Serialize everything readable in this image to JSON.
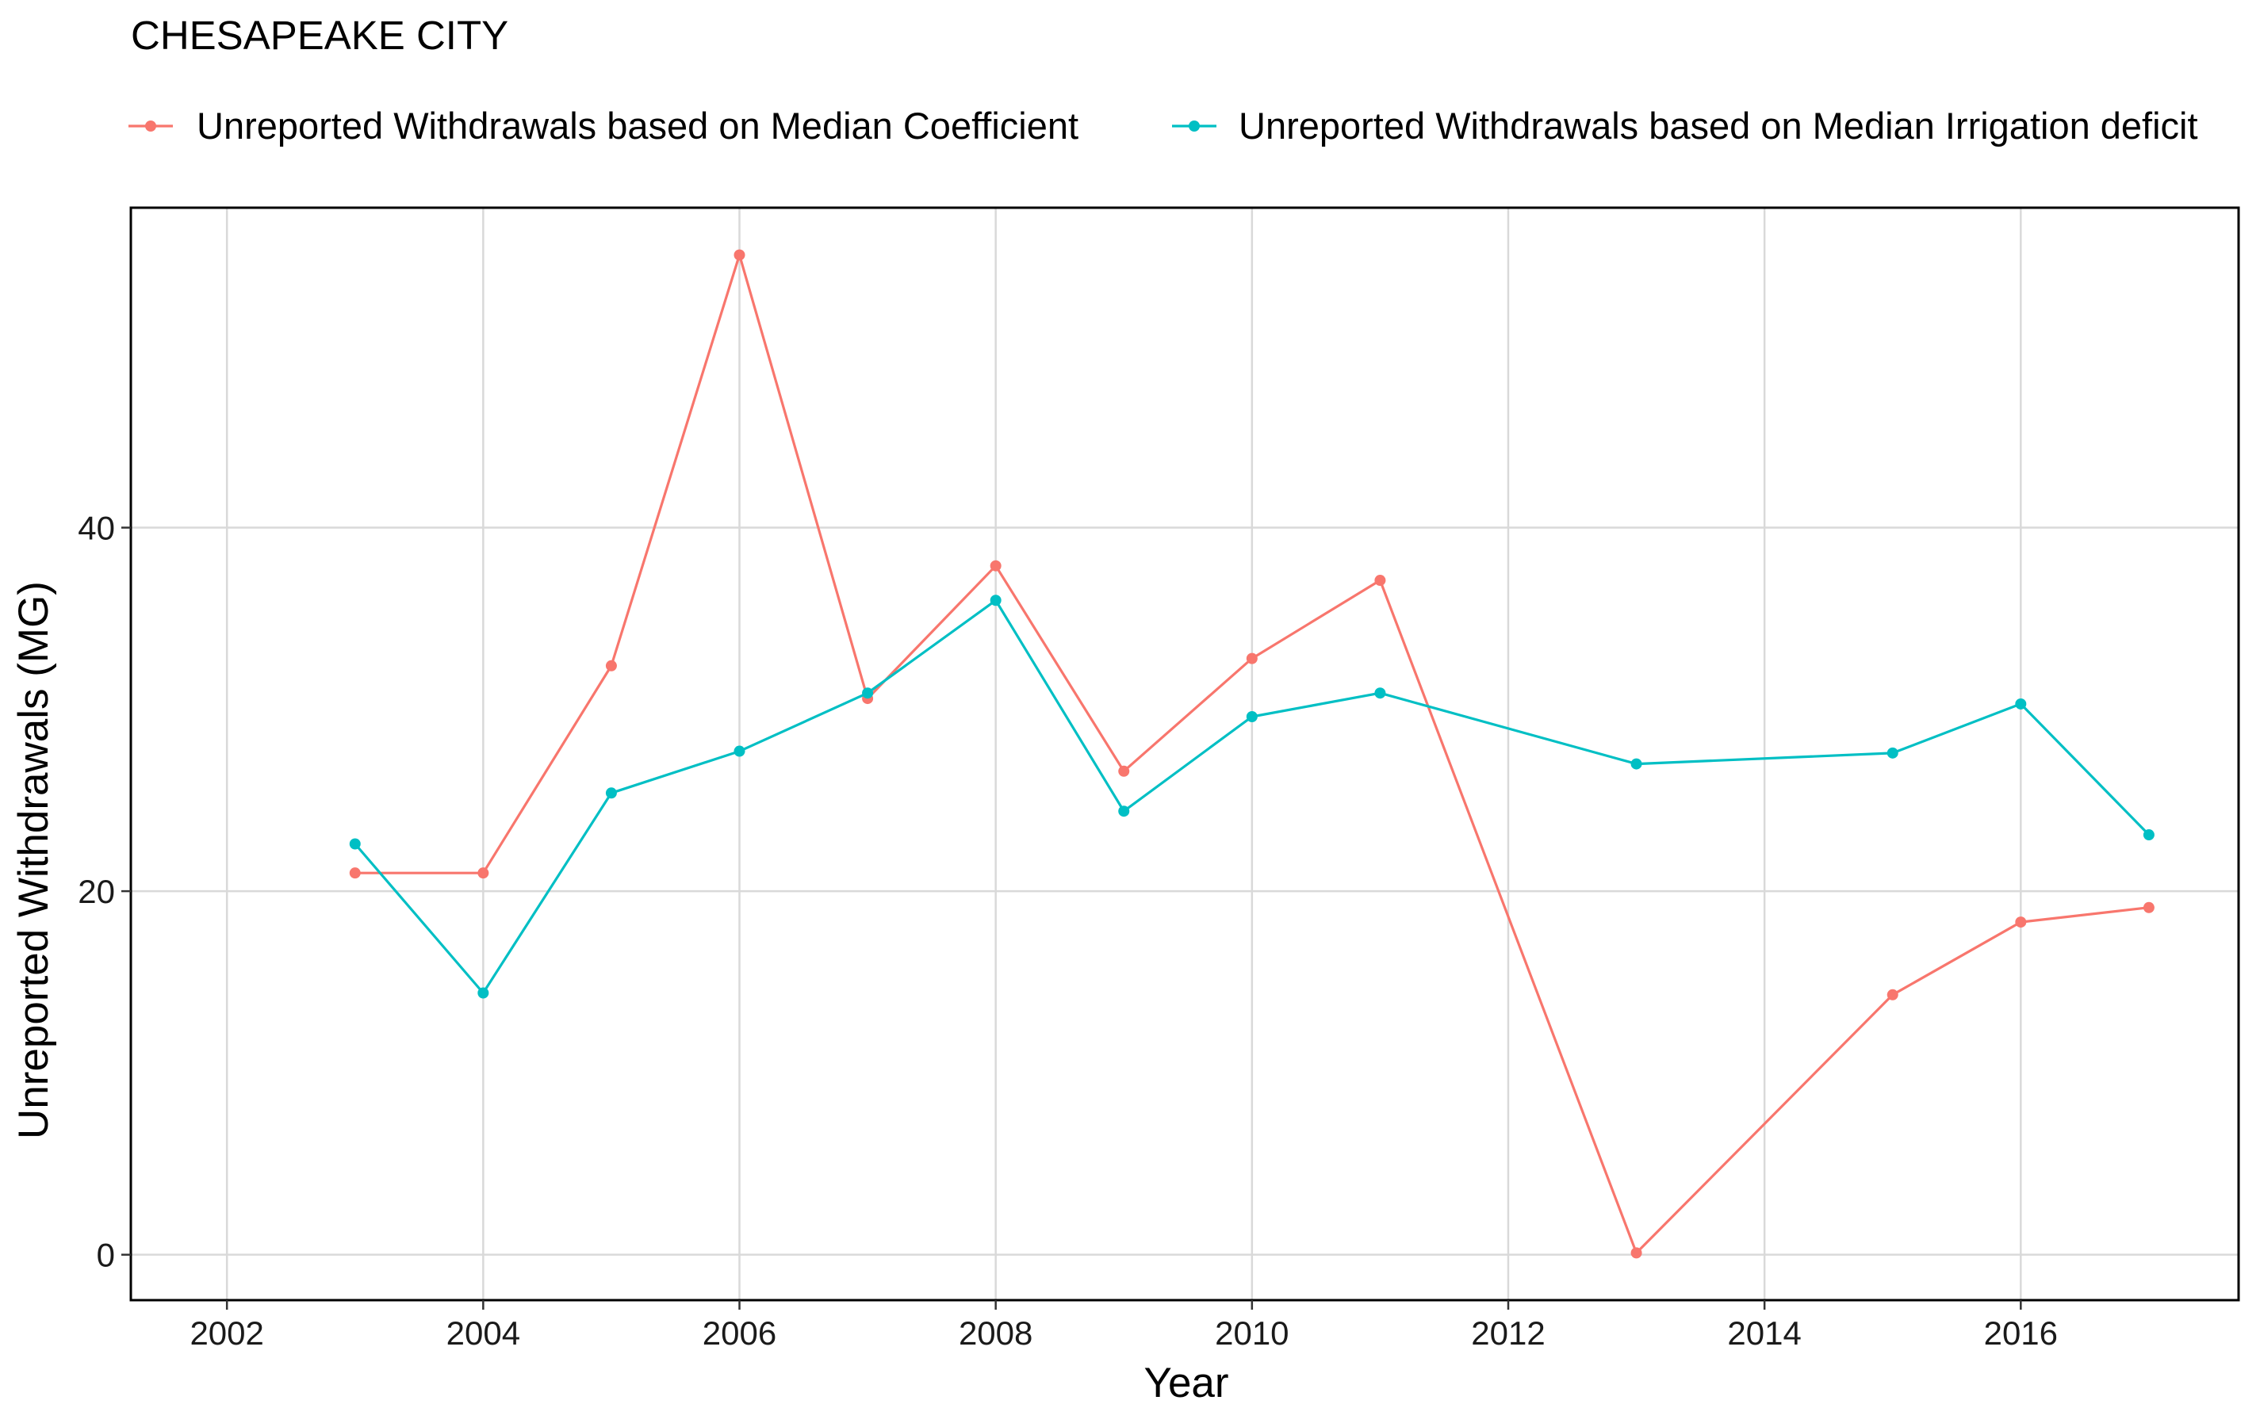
{
  "chart_data": {
    "type": "line",
    "title": "CHESAPEAKE CITY",
    "xlabel": "Year",
    "ylabel": "Unreported Withdrawals (MG)",
    "xlim": [
      2001.25,
      2017.7
    ],
    "ylim": [
      -2.5,
      57.6
    ],
    "x_ticks": [
      2002,
      2004,
      2006,
      2008,
      2010,
      2012,
      2014,
      2016
    ],
    "y_ticks": [
      0,
      20,
      40
    ],
    "grid": true,
    "legend_position": "top",
    "series": [
      {
        "name": "Unreported Withdrawals based on Median Coefficient",
        "color": "#F8766D",
        "x": [
          2003,
          2004,
          2005,
          2006,
          2007,
          2008,
          2009,
          2010,
          2011,
          2013,
          2015,
          2016,
          2017
        ],
        "y": [
          21.0,
          21.0,
          32.4,
          55.0,
          30.6,
          37.9,
          26.6,
          32.8,
          37.1,
          0.1,
          14.3,
          18.3,
          19.1
        ]
      },
      {
        "name": "Unreported Withdrawals based on Median Irrigation deficit",
        "color": "#00BFC4",
        "x": [
          2003,
          2004,
          2005,
          2006,
          2007,
          2008,
          2009,
          2010,
          2011,
          2013,
          2015,
          2016,
          2017
        ],
        "y": [
          22.6,
          14.4,
          25.4,
          27.7,
          30.9,
          36.0,
          24.4,
          29.6,
          30.9,
          27.0,
          27.6,
          30.3,
          23.1
        ]
      }
    ]
  }
}
